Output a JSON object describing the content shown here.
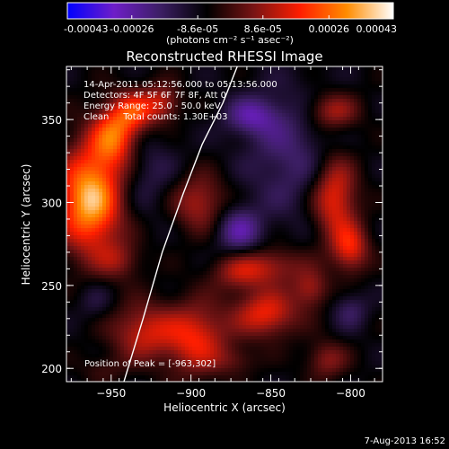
{
  "chart_data": {
    "type": "heatmap",
    "title": "Reconstructed RHESSI Image",
    "xlabel": "Heliocentric X (arcsec)",
    "ylabel": "Heliocentric Y (arcsec)",
    "xlim": [
      -978,
      -780
    ],
    "ylim": [
      192,
      382
    ],
    "xticks": [
      -950,
      -900,
      -850,
      -800
    ],
    "yticks": [
      200,
      250,
      300,
      350
    ],
    "colorbar": {
      "range": [
        -0.00043,
        0.00043
      ],
      "tick_values": [
        -0.00043,
        -0.00026,
        -8.6e-05,
        8.6e-05,
        0.00026,
        0.00043
      ],
      "tick_labels": [
        "-0.00043",
        "-0.00026",
        "-8.6e-05",
        "8.6e-05",
        "0.00026",
        "0.00043"
      ],
      "unit_label": "(photons cm⁻² s⁻¹ asec⁻²)"
    },
    "annotations": [
      "14-Apr-2011 05:12:56.000 to 05:13:56.000",
      "Detectors: 4F 5F 6F 7F 8F, Att 0",
      "Energy Range: 25.0 - 50.0 keV",
      "Clean     Total counts: 1.30E+03"
    ],
    "peak_label": "Position of Peak = [-963,302]",
    "peak": {
      "x": -963,
      "y": 302,
      "value": 0.00043
    },
    "blobs": [
      {
        "x": -963,
        "y": 302,
        "value": 0.00043,
        "sx": 14,
        "sy": 22
      },
      {
        "x": -948,
        "y": 340,
        "value": 0.0003,
        "sx": 10,
        "sy": 13
      },
      {
        "x": -935,
        "y": 355,
        "value": 0.00022,
        "sx": 9,
        "sy": 9
      },
      {
        "x": -918,
        "y": 360,
        "value": 0.00018,
        "sx": 8,
        "sy": 8
      },
      {
        "x": -945,
        "y": 265,
        "value": 0.00012,
        "sx": 10,
        "sy": 8
      },
      {
        "x": -895,
        "y": 300,
        "value": 0.00018,
        "sx": 12,
        "sy": 12
      },
      {
        "x": -930,
        "y": 222,
        "value": 0.0002,
        "sx": 14,
        "sy": 12
      },
      {
        "x": -897,
        "y": 218,
        "value": 0.00024,
        "sx": 14,
        "sy": 15
      },
      {
        "x": -870,
        "y": 258,
        "value": 0.00016,
        "sx": 12,
        "sy": 8
      },
      {
        "x": -848,
        "y": 262,
        "value": 0.00015,
        "sx": 14,
        "sy": 8
      },
      {
        "x": -853,
        "y": 233,
        "value": 0.00024,
        "sx": 14,
        "sy": 10
      },
      {
        "x": -825,
        "y": 248,
        "value": 0.00016,
        "sx": 8,
        "sy": 8
      },
      {
        "x": -800,
        "y": 272,
        "value": 0.00022,
        "sx": 8,
        "sy": 10
      },
      {
        "x": -810,
        "y": 303,
        "value": 0.00026,
        "sx": 10,
        "sy": 18
      },
      {
        "x": -812,
        "y": 355,
        "value": 0.00018,
        "sx": 12,
        "sy": 8
      },
      {
        "x": -815,
        "y": 205,
        "value": 0.00014,
        "sx": 9,
        "sy": 8
      },
      {
        "x": -872,
        "y": 205,
        "value": 8e-05,
        "sx": 10,
        "sy": 6
      },
      {
        "x": -955,
        "y": 200,
        "value": 6e-05,
        "sx": 10,
        "sy": 6
      },
      {
        "x": -838,
        "y": 330,
        "value": -0.00012,
        "sx": 20,
        "sy": 28
      },
      {
        "x": -862,
        "y": 352,
        "value": -0.00016,
        "sx": 12,
        "sy": 8
      },
      {
        "x": -870,
        "y": 283,
        "value": -0.00018,
        "sx": 10,
        "sy": 10
      },
      {
        "x": -928,
        "y": 318,
        "value": -8e-05,
        "sx": 14,
        "sy": 18
      },
      {
        "x": -800,
        "y": 235,
        "value": -0.0001,
        "sx": 8,
        "sy": 8
      },
      {
        "x": -960,
        "y": 240,
        "value": -6e-05,
        "sx": 8,
        "sy": 8
      }
    ],
    "limb_arc": [
      [
        -942,
        192
      ],
      [
        -930,
        230
      ],
      [
        -918,
        270
      ],
      [
        -905,
        305
      ],
      [
        -893,
        335
      ],
      [
        -880,
        360
      ],
      [
        -871,
        382
      ]
    ],
    "grid": false,
    "colormap": [
      "#0000ff",
      "#6e1ec8",
      "#3c1e64",
      "#000000",
      "#781414",
      "#ff1e00",
      "#ff8c00",
      "#ffffff"
    ]
  },
  "timestamp": "7-Aug-2013 16:52"
}
